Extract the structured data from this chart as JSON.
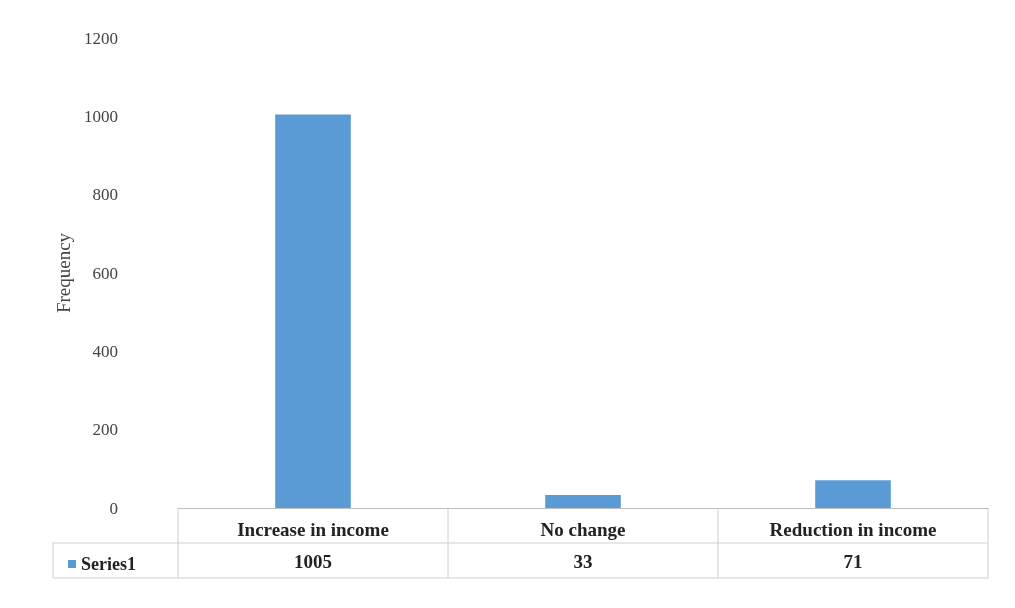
{
  "chart_data": {
    "type": "bar",
    "ylabel": "Frequency",
    "categories": [
      "Increase in income",
      "No change",
      "Reduction in income"
    ],
    "series": [
      {
        "name": "Series1",
        "color": "#5b9bd5",
        "values": [
          1005,
          33,
          71
        ]
      }
    ],
    "ylim": [
      0,
      1200
    ],
    "yticks": [
      0,
      200,
      400,
      600,
      800,
      1000,
      1200
    ],
    "grid": false,
    "legend": "bottom left",
    "data_labels": true
  }
}
